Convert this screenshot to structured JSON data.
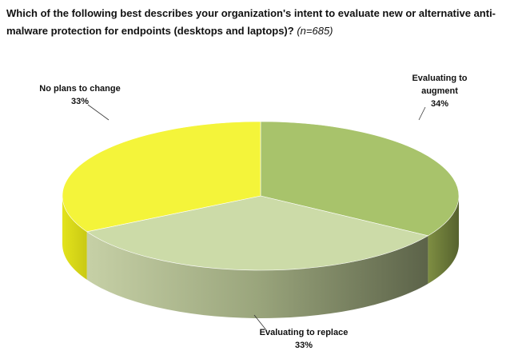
{
  "chart_data": {
    "type": "pie3d",
    "title": "Which of the following best describes your organization's intent to evaluate new or alternative anti-malware protection for endpoints (desktops and laptops)?",
    "subtitle": "(n=685)",
    "categories": [
      "Evaluating to augment",
      "Evaluating to replace",
      "No plans to change"
    ],
    "values": [
      34,
      33,
      33
    ],
    "value_labels": [
      "34%",
      "33%",
      "33%"
    ],
    "colors": [
      "#a8c36b",
      "#ccdba8",
      "#f4f43a"
    ]
  }
}
